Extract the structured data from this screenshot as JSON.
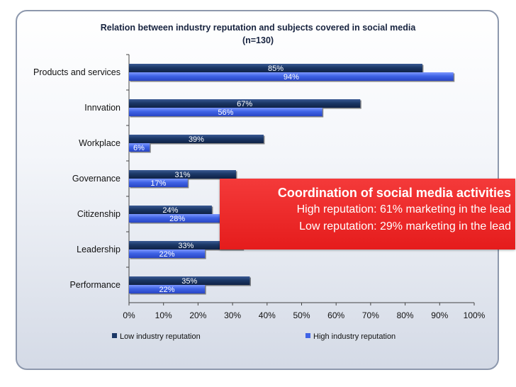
{
  "chart_data": {
    "type": "bar",
    "orientation": "horizontal",
    "title": "Relation between industry reputation and subjects covered in social media",
    "subtitle": "(n=130)",
    "categories": [
      "Products and services",
      "Innvation",
      "Workplace",
      "Governance",
      "Citizenship",
      "Leadership",
      "Performance"
    ],
    "series": [
      {
        "name": "Low industry reputation",
        "values": [
          85,
          67,
          39,
          31,
          24,
          33,
          35
        ],
        "color": "#1b3766"
      },
      {
        "name": "High industry reputation",
        "values": [
          94,
          56,
          6,
          17,
          28,
          22,
          22
        ],
        "color": "#3f63e6"
      }
    ],
    "data_labels_low": [
      "85%",
      "67%",
      "39%",
      "31%",
      "24%",
      "33%",
      "35%"
    ],
    "data_labels_high": [
      "94%",
      "56%",
      "6%",
      "17%",
      "28%",
      "22%",
      "22%"
    ],
    "xlim": [
      0,
      100
    ],
    "xticks": [
      "0%",
      "10%",
      "20%",
      "30%",
      "40%",
      "50%",
      "60%",
      "70%",
      "80%",
      "90%",
      "100%"
    ],
    "grid": false,
    "legend": "bottom"
  },
  "callout": {
    "heading": "Coordination of social media activities",
    "line1": "High reputation: 61% marketing in the lead",
    "line2": "Low reputation: 29% marketing in the lead"
  },
  "colors": {
    "low": "#1b3766",
    "high": "#3f63e6",
    "callout": "#e51c1c"
  }
}
